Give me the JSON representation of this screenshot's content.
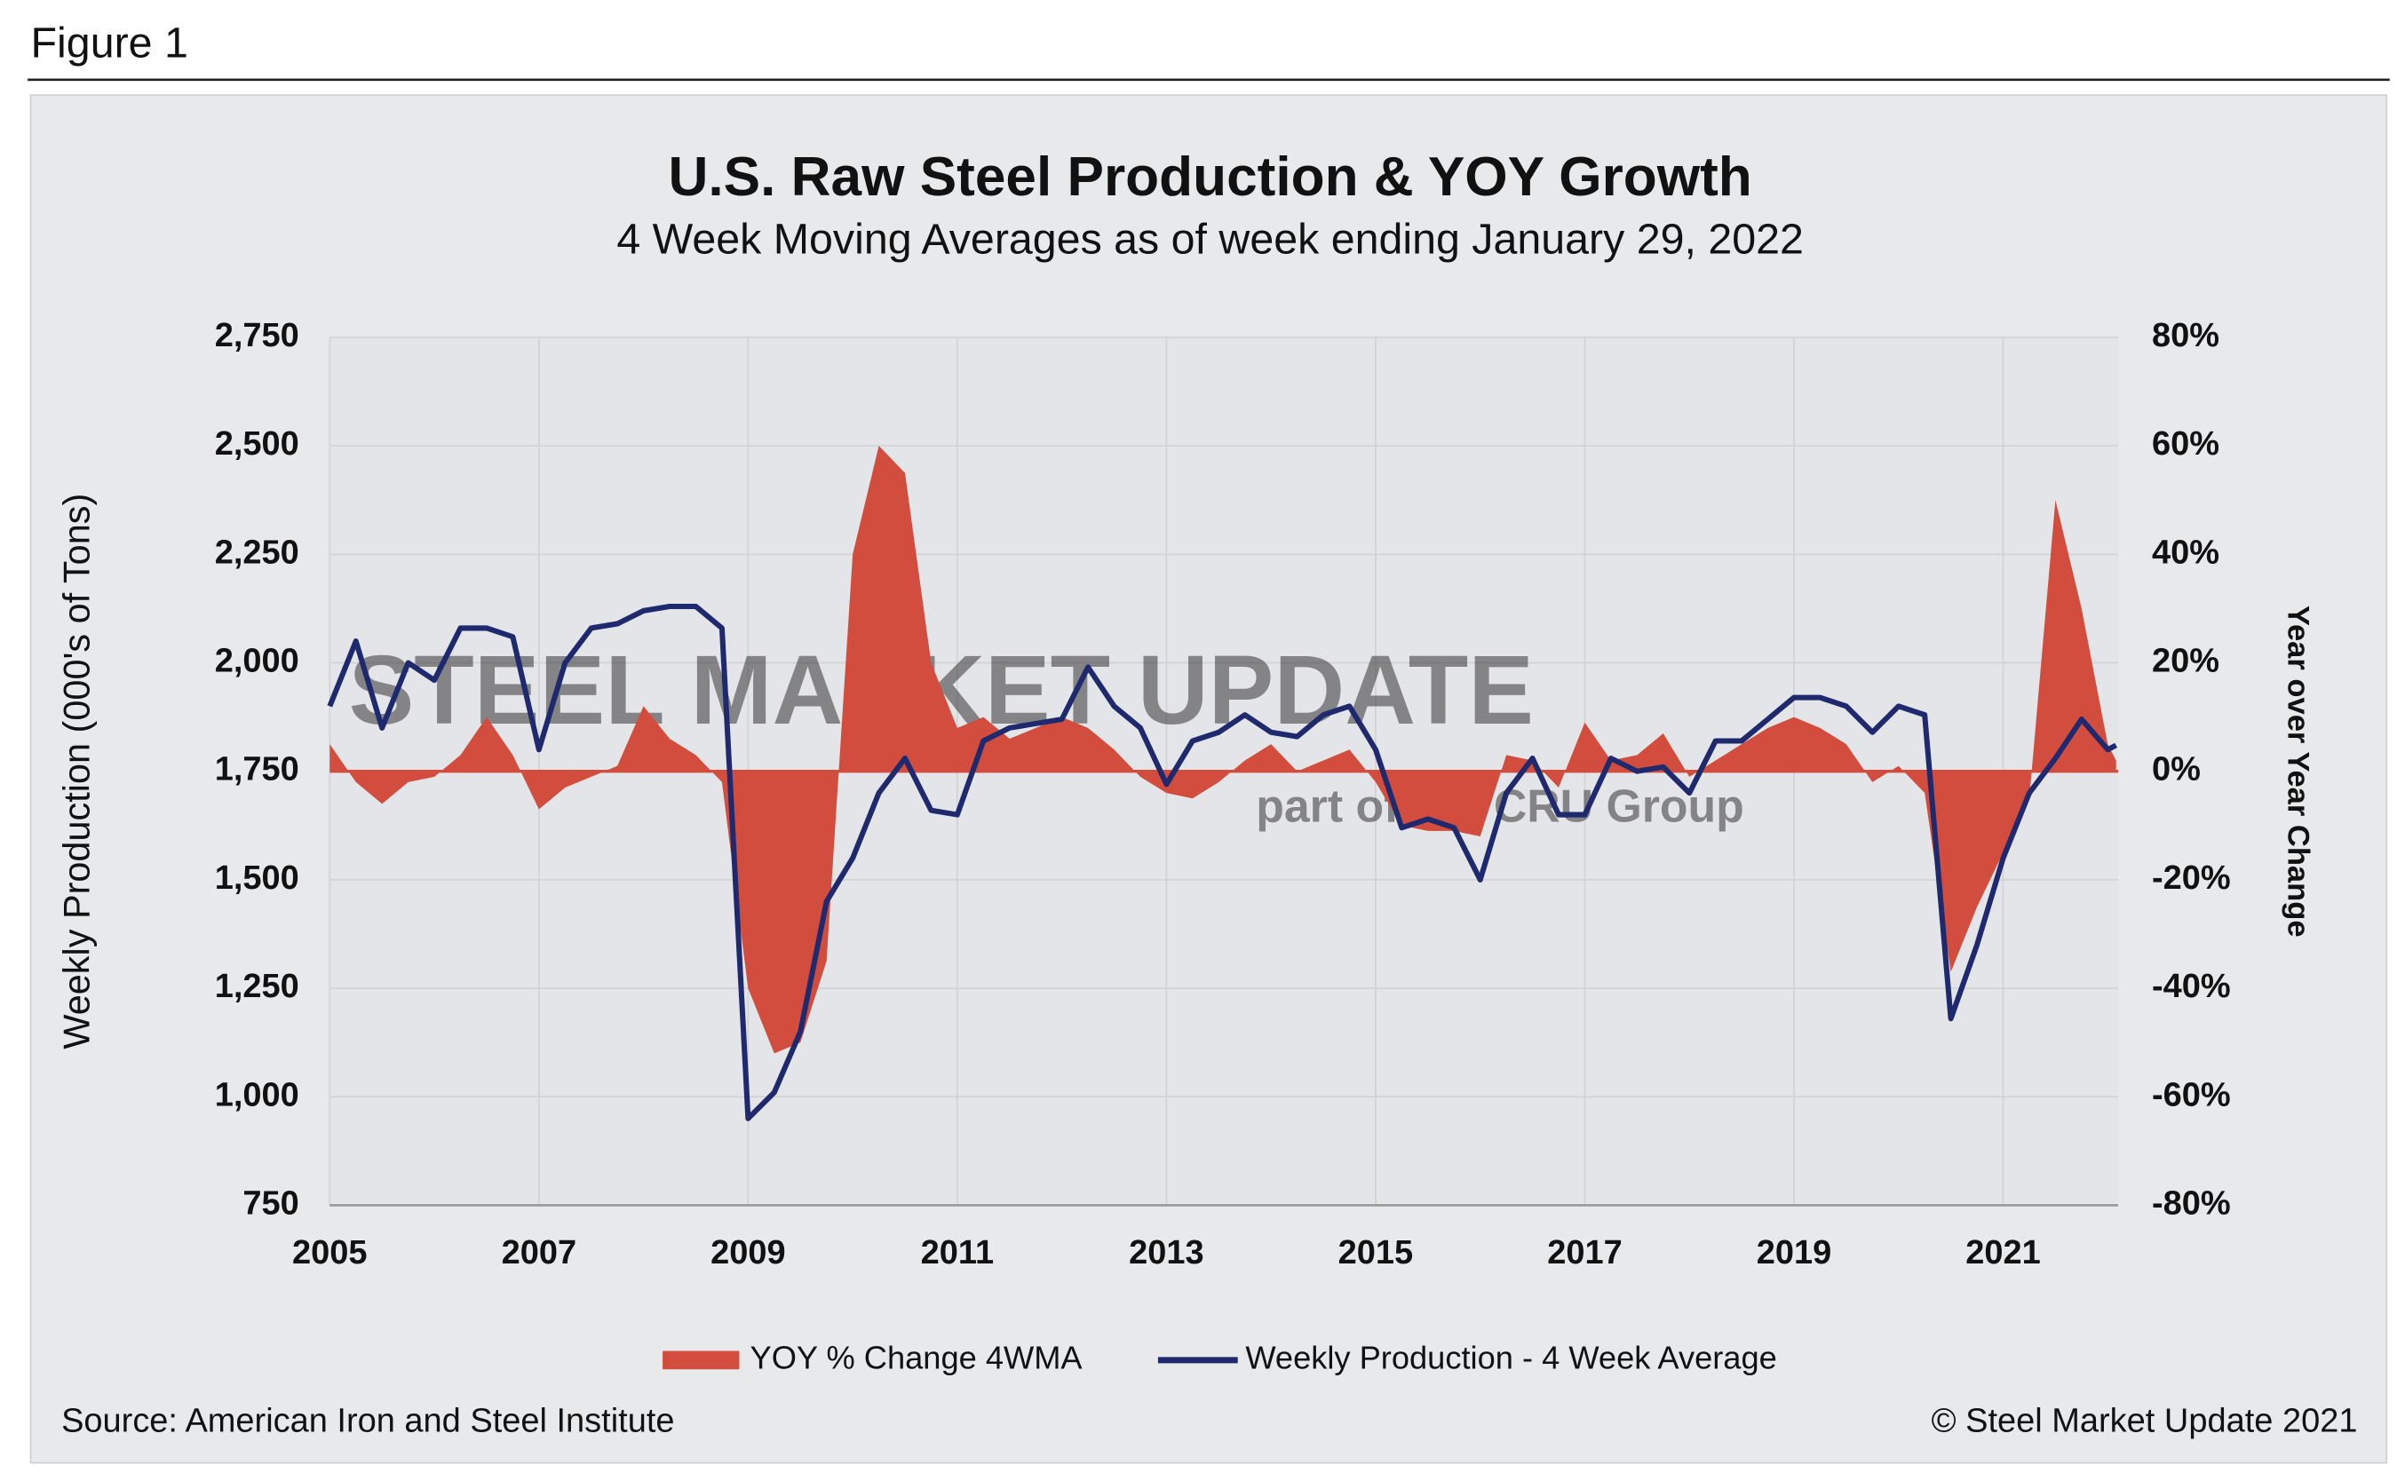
{
  "header": "Figure 1",
  "chart_data": {
    "type": "area-line",
    "title": "U.S. Raw Steel Production & YOY Growth",
    "subtitle": "4 Week Moving Averages as of week ending January 29, 2022",
    "y_label": "Weekly Production (000's of Tons)",
    "y2_label": "Year over Year Change",
    "watermark": "STEEL MARKET UPDATE",
    "watermark_sub": "part of the CRU Group",
    "source": "Source: American Iron and Steel Institute",
    "copyright": "© Steel Market Update 2021",
    "grid": true,
    "x": [
      2005,
      2005.25,
      2005.5,
      2005.75,
      2006,
      2006.25,
      2006.5,
      2006.75,
      2007,
      2007.25,
      2007.5,
      2007.75,
      2008,
      2008.25,
      2008.5,
      2008.75,
      2009,
      2009.25,
      2009.5,
      2009.75,
      2010,
      2010.25,
      2010.5,
      2010.75,
      2011,
      2011.25,
      2011.5,
      2011.75,
      2012,
      2012.25,
      2012.5,
      2012.75,
      2013,
      2013.25,
      2013.5,
      2013.75,
      2014,
      2014.25,
      2014.5,
      2014.75,
      2015,
      2015.25,
      2015.5,
      2015.75,
      2016,
      2016.25,
      2016.5,
      2016.75,
      2017,
      2017.25,
      2017.5,
      2017.75,
      2018,
      2018.25,
      2018.5,
      2018.75,
      2019,
      2019.25,
      2019.5,
      2019.75,
      2020,
      2020.25,
      2020.5,
      2020.75,
      2021,
      2021.25,
      2021.5,
      2021.75,
      2022,
      2022.08
    ],
    "xlim": [
      2005,
      2022.1
    ],
    "xticks": [
      2005,
      2007,
      2009,
      2011,
      2013,
      2015,
      2017,
      2019,
      2021
    ],
    "ylim": [
      750,
      2750
    ],
    "yticks": [
      {
        "value": 750,
        "label": "750"
      },
      {
        "value": 1000,
        "label": "1,000"
      },
      {
        "value": 1250,
        "label": "1,250"
      },
      {
        "value": 1500,
        "label": "1,500"
      },
      {
        "value": 1750,
        "label": "1,750"
      },
      {
        "value": 2000,
        "label": "2,000"
      },
      {
        "value": 2250,
        "label": "2,250"
      },
      {
        "value": 2500,
        "label": "2,500"
      },
      {
        "value": 2750,
        "label": "2,750"
      }
    ],
    "y2lim": [
      -80,
      80
    ],
    "y2ticks": [
      {
        "value": -80,
        "label": "-80%"
      },
      {
        "value": -60,
        "label": "-60%"
      },
      {
        "value": -40,
        "label": "-40%"
      },
      {
        "value": -20,
        "label": "-20%"
      },
      {
        "value": 0,
        "label": "0%"
      },
      {
        "value": 20,
        "label": "20%"
      },
      {
        "value": 40,
        "label": "40%"
      },
      {
        "value": 60,
        "label": "60%"
      },
      {
        "value": 80,
        "label": "80%"
      }
    ],
    "series": [
      {
        "name": "YOY % Change 4WMA",
        "kind": "area",
        "axis": "y2",
        "color": "#d24d3e",
        "values": [
          5,
          -2,
          -6,
          -2,
          -1,
          3,
          10,
          3,
          -7,
          -3,
          -1,
          1,
          12,
          6,
          3,
          -2,
          -40,
          -52,
          -50,
          -35,
          40,
          60,
          55,
          20,
          8,
          10,
          6,
          8,
          10,
          8,
          4,
          -1,
          -4,
          -5,
          -2,
          2,
          5,
          0,
          2,
          4,
          -2,
          -10,
          -11,
          -11,
          -12,
          3,
          2,
          -3,
          9,
          2,
          3,
          7,
          -1,
          2,
          5,
          8,
          10,
          8,
          5,
          -2,
          1,
          -4,
          -37,
          -25,
          -15,
          -5,
          50,
          30,
          5,
          2
        ]
      },
      {
        "name": "Weekly Production - 4 Week Average",
        "kind": "line",
        "axis": "y",
        "color": "#1f2a6e",
        "values": [
          1900,
          2050,
          1850,
          2000,
          1960,
          2080,
          2080,
          2060,
          1800,
          2000,
          2080,
          2090,
          2120,
          2130,
          2130,
          2080,
          950,
          1010,
          1150,
          1450,
          1550,
          1700,
          1780,
          1660,
          1650,
          1820,
          1850,
          1860,
          1870,
          1990,
          1900,
          1850,
          1720,
          1820,
          1840,
          1880,
          1840,
          1830,
          1880,
          1900,
          1800,
          1620,
          1640,
          1620,
          1500,
          1700,
          1780,
          1650,
          1650,
          1780,
          1750,
          1760,
          1700,
          1820,
          1820,
          1870,
          1920,
          1920,
          1900,
          1840,
          1900,
          1880,
          1180,
          1350,
          1550,
          1700,
          1780,
          1870,
          1800,
          1810
        ]
      }
    ]
  }
}
